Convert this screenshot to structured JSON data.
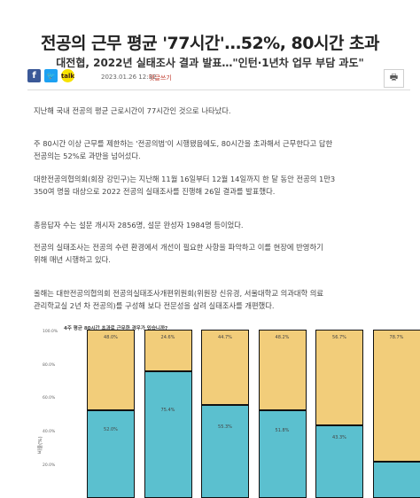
{
  "article": {
    "title": "전공의 근무 평균 '77시간'…52%, 80시간 초과",
    "subtitle": "대전협, 2022년 실태조사 결과 발표…\"인턴·1년차 업무 부담 과도\"",
    "date": "2023.01.26 12:32",
    "comment_label": "댓글쓰기"
  },
  "share": {
    "facebook_icon": "facebook-icon",
    "twitter_icon": "twitter-icon",
    "kakao_icon": "kakao-icon",
    "print_icon": "printer-icon"
  },
  "paragraphs": {
    "p1": [
      "지난해 국내 전공의 평균 근로시간이 77시간인 것으로 나타났다."
    ],
    "p2": [
      "주 80시간 이상 근무를 제한하는 '전공의법'이 시행됐음에도, 80시간을 초과해서 근무한다고 답한",
      "전공의는 52%로 과반을 넘어섰다."
    ],
    "p3": [
      "대한전공의협의회(회장 강민구)는 지난해 11월 16일부터 12월 14일까지 한 달 동안 전공의 1만3",
      "350여 명을 대상으로 2022 전공의 실태조사를 진행해 26일 결과를 발표했다."
    ],
    "p4": [
      "총응답자 수는 설문 개시자 2856명, 설문 완성자 1984명 등이었다."
    ],
    "p5": [
      "전공의 실태조사는 전공의 수련 환경에서 개선이 필요한 사항을 파악하고 이를 현장에 반영하기",
      "위해 매년 시행하고 있다."
    ],
    "p6": [
      "올해는 대한전공의협의회 전공의실태조사개편위원회(위원장 신유경, 서울대학교 의과대학 의료",
      "관리학교실 2년 차 전공의)를 구성해 보다 전문성을 살려 실태조사를 개편했다."
    ]
  },
  "chart_data": {
    "type": "bar",
    "stacked": true,
    "title": "4주 평균 80시간 초과로 근무한 경우가 있습니까?",
    "ylabel": "비율(%)",
    "yticks": [
      "100.0%",
      "80.0%",
      "60.0%",
      "40.0%",
      "20.0%"
    ],
    "ylim": [
      0,
      100
    ],
    "series": [
      {
        "name": "",
        "color": "#5bc0cf",
        "values": [
          52.0,
          75.4,
          55.3,
          51.8,
          43.3,
          21.3
        ]
      },
      {
        "name": "",
        "color": "#f2cd7a",
        "values": [
          48.0,
          24.6,
          44.7,
          48.2,
          56.7,
          78.7
        ]
      }
    ],
    "top_labels": [
      "48.0%",
      "24.6%",
      "44.7%",
      "48.2%",
      "56.7%",
      "78.7%"
    ],
    "bottom_labels": [
      "52.0%",
      "75.4%",
      "55.3%",
      "51.8%",
      "43.3%",
      ""
    ]
  }
}
